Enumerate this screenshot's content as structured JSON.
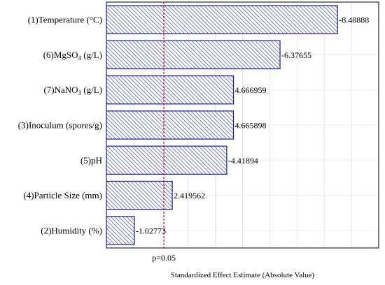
{
  "chart_data": {
    "type": "bar",
    "orientation": "horizontal",
    "categories": [
      "(1)Temperature (°C)",
      "(6)MgSO4 (g/L)",
      "(7)NaNO3 (g/L)",
      "(3)Inoculum (spores/g)",
      "(5)pH",
      "(4)Particle Size (mm)",
      "(2)Humidity (%)"
    ],
    "values": [
      8.48888,
      6.37655,
      4.666959,
      4.665898,
      4.41894,
      2.419562,
      1.02773
    ],
    "value_labels": [
      "-8.48888",
      "-6.37655",
      "4.666959",
      "4.665898",
      "-4.41894",
      "2.419562",
      "-1.02773"
    ],
    "reference_line": {
      "value": 2.11,
      "label": "p=0.05",
      "color": "#c0001a"
    },
    "xlabel": "Standardized Effect Estimate (Absolute Value)",
    "ylabel": "",
    "xlim": [
      0,
      10
    ],
    "grid": true,
    "hatch": true,
    "bar_edge_color": "#1a1aaa",
    "bar_fill_color": "#b9bcd6"
  }
}
